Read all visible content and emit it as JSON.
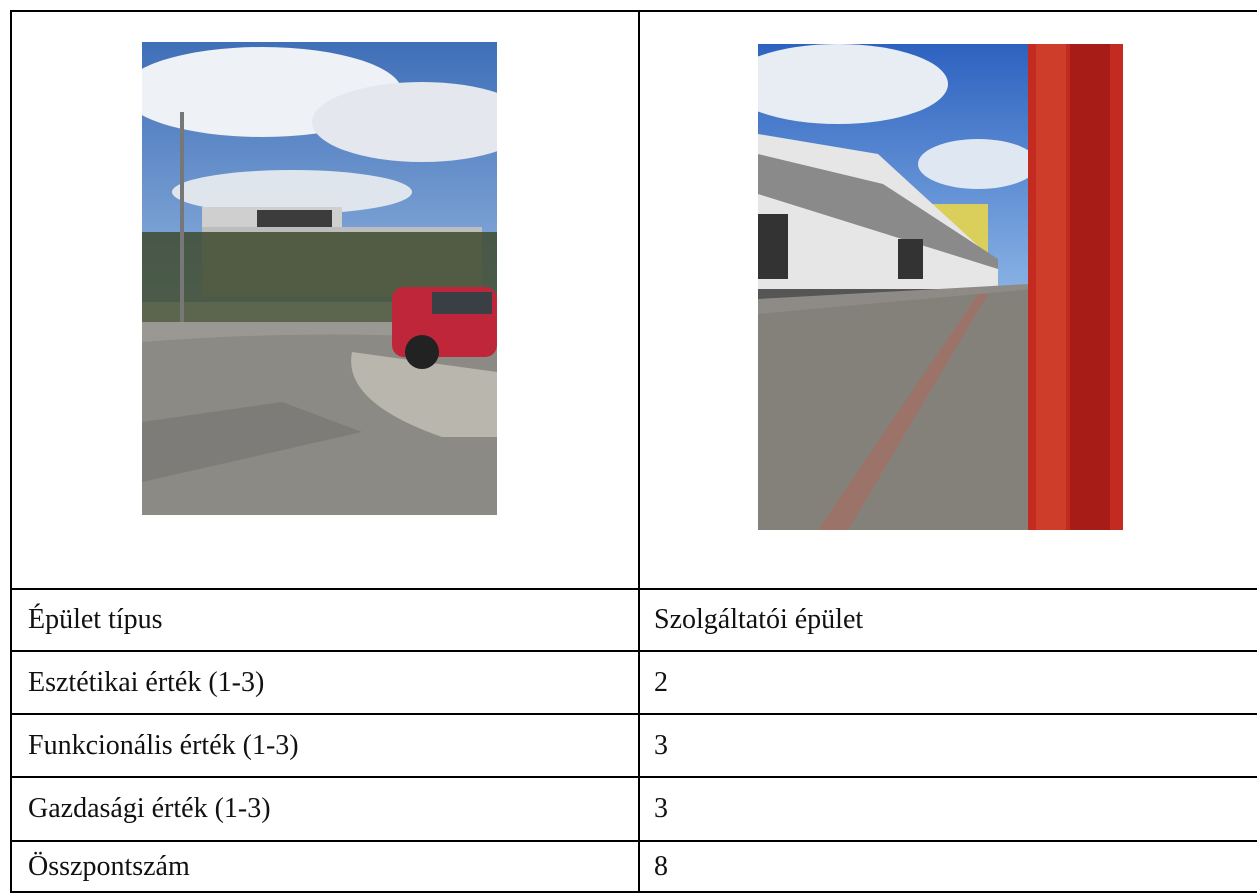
{
  "table": {
    "rows": [
      [
        "Épület típus",
        "Szolgáltatói épület"
      ],
      [
        "Esztétikai érték (1-3)",
        2
      ],
      [
        "Funkcionális érték (1-3)",
        3
      ],
      [
        "Gazdasági érték (1-3)",
        3
      ],
      [
        "Összpontszám",
        8
      ]
    ]
  }
}
